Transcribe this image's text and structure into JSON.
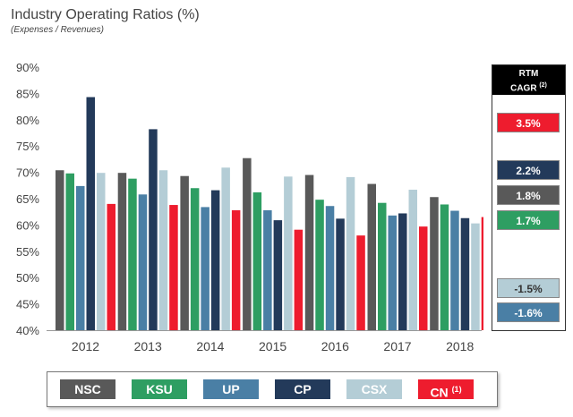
{
  "title": "Industry Operating Ratios (%)",
  "subtitle": "(Expenses / Revenues)",
  "colors": {
    "NSC": "#595959",
    "KSU": "#2e9e62",
    "UP": "#4a7fa5",
    "CP": "#233a5a",
    "CSX": "#b4cdd6",
    "CN": "#ee1c2e"
  },
  "chart_data": {
    "type": "bar",
    "title": "Industry Operating Ratios (%)",
    "categories": [
      "2012",
      "2013",
      "2014",
      "2015",
      "2016",
      "2017",
      "2018"
    ],
    "ylim": [
      40,
      90
    ],
    "yticks": [
      "90%",
      "85%",
      "80%",
      "75%",
      "70%",
      "65%",
      "60%",
      "55%",
      "50%",
      "45%",
      "40%"
    ],
    "legend_position": "bottom",
    "grid": false,
    "series": [
      {
        "name": "NSC",
        "values": [
          70.4,
          69.9,
          69.3,
          72.7,
          69.5,
          67.8,
          65.3
        ]
      },
      {
        "name": "KSU",
        "values": [
          69.8,
          68.8,
          67.0,
          66.2,
          64.8,
          64.2,
          63.9
        ]
      },
      {
        "name": "UP",
        "values": [
          67.4,
          65.8,
          63.4,
          62.8,
          63.6,
          61.8,
          62.7
        ]
      },
      {
        "name": "CP",
        "values": [
          84.3,
          78.2,
          66.6,
          60.9,
          61.2,
          62.2,
          61.3
        ]
      },
      {
        "name": "CSX",
        "values": [
          69.9,
          70.4,
          70.9,
          69.2,
          69.1,
          66.7,
          60.3
        ]
      },
      {
        "name": "CN",
        "values": [
          64.0,
          63.8,
          62.8,
          59.1,
          58.0,
          59.7,
          61.5
        ]
      }
    ]
  },
  "legend": [
    {
      "label": "NSC",
      "sup": ""
    },
    {
      "label": "KSU",
      "sup": ""
    },
    {
      "label": "UP",
      "sup": ""
    },
    {
      "label": "CP",
      "sup": ""
    },
    {
      "label": "CSX",
      "sup": ""
    },
    {
      "label": "CN",
      "sup": "(1)"
    }
  ],
  "cagr": {
    "header_line1": "RTM",
    "header_line2": "CAGR",
    "header_sup": "(2)",
    "items": [
      {
        "company": "CN",
        "value": "3.5%"
      },
      {
        "company": "CP",
        "value": "2.2%"
      },
      {
        "company": "NSC",
        "value": "1.8%"
      },
      {
        "company": "KSU",
        "value": "1.7%"
      },
      {
        "company": "CSX",
        "value": "-1.5%"
      },
      {
        "company": "UP",
        "value": "-1.6%"
      }
    ]
  }
}
